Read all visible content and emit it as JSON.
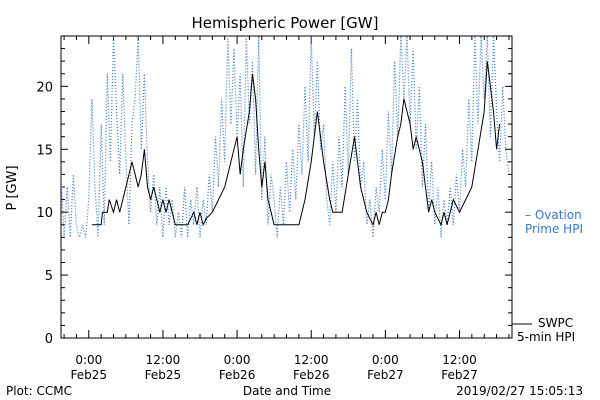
{
  "chart_data": {
    "type": "line",
    "title": "Hemispheric Power [GW]",
    "ylabel": "P [GW]",
    "xlabel": "Date and Time",
    "ylim": [
      0,
      24
    ],
    "xlim_hours": [
      -4.5,
      68.5
    ],
    "y_ticks": [
      {
        "value": 0,
        "label": "0"
      },
      {
        "value": 5,
        "label": "5"
      },
      {
        "value": 10,
        "label": "10"
      },
      {
        "value": 15,
        "label": "15"
      },
      {
        "value": 20,
        "label": "20"
      }
    ],
    "x_ticks": [
      {
        "hour": 0,
        "line1": "0:00",
        "line2": "Feb25"
      },
      {
        "hour": 12,
        "line1": "12:00",
        "line2": "Feb25"
      },
      {
        "hour": 24,
        "line1": "0:00",
        "line2": "Feb26"
      },
      {
        "hour": 36,
        "line1": "12:00",
        "line2": "Feb26"
      },
      {
        "hour": 48,
        "line1": "0:00",
        "line2": "Feb27"
      },
      {
        "hour": 60,
        "line1": "12:00",
        "line2": "Feb27"
      }
    ],
    "series": [
      {
        "name": "SWPC 5-min HPI",
        "color": "#000000",
        "style": "solid",
        "legend_line1": "SWPC",
        "legend_line2": "5-min HPI",
        "points": [
          [
            0.5,
            9
          ],
          [
            2,
            9
          ],
          [
            2.2,
            10
          ],
          [
            3,
            10
          ],
          [
            3.3,
            11
          ],
          [
            4,
            10
          ],
          [
            4.5,
            11
          ],
          [
            5,
            10
          ],
          [
            5.5,
            11
          ],
          [
            6,
            12
          ],
          [
            6.5,
            13
          ],
          [
            7,
            14
          ],
          [
            7.5,
            13
          ],
          [
            8,
            12
          ],
          [
            8.5,
            13
          ],
          [
            9,
            15
          ],
          [
            9.5,
            12
          ],
          [
            10,
            11
          ],
          [
            10.5,
            12
          ],
          [
            11,
            11
          ],
          [
            11.5,
            10
          ],
          [
            12,
            11
          ],
          [
            12.5,
            10
          ],
          [
            13,
            11
          ],
          [
            13.5,
            10
          ],
          [
            14,
            9
          ],
          [
            16,
            9
          ],
          [
            17,
            10
          ],
          [
            17.5,
            9
          ],
          [
            18,
            10
          ],
          [
            18.5,
            9
          ],
          [
            19,
            9.5
          ],
          [
            20,
            10
          ],
          [
            21,
            11
          ],
          [
            22,
            12
          ],
          [
            23,
            14
          ],
          [
            24,
            16
          ],
          [
            24.5,
            13
          ],
          [
            25,
            15
          ],
          [
            26,
            18
          ],
          [
            26.5,
            21
          ],
          [
            27,
            19
          ],
          [
            27.5,
            15
          ],
          [
            28,
            12
          ],
          [
            28.5,
            14
          ],
          [
            29,
            11
          ],
          [
            29.5,
            10
          ],
          [
            30,
            9
          ],
          [
            34,
            9
          ],
          [
            35,
            11
          ],
          [
            36,
            14
          ],
          [
            37,
            18
          ],
          [
            38,
            14
          ],
          [
            39,
            11
          ],
          [
            39.5,
            10
          ],
          [
            41,
            10
          ],
          [
            42,
            13
          ],
          [
            43,
            16
          ],
          [
            44,
            12
          ],
          [
            45,
            10
          ],
          [
            46,
            9
          ],
          [
            46.5,
            10
          ],
          [
            47,
            9
          ],
          [
            47.5,
            10
          ],
          [
            48,
            10
          ],
          [
            48.5,
            11
          ],
          [
            49,
            13
          ],
          [
            50,
            16
          ],
          [
            50.5,
            17
          ],
          [
            51,
            19
          ],
          [
            51.5,
            18
          ],
          [
            52,
            17
          ],
          [
            52.5,
            15
          ],
          [
            53,
            16
          ],
          [
            53.5,
            15
          ],
          [
            54,
            14
          ],
          [
            54.5,
            12
          ],
          [
            55,
            10
          ],
          [
            55.5,
            11
          ],
          [
            56,
            10
          ],
          [
            57,
            9
          ],
          [
            57.5,
            10
          ],
          [
            58,
            9
          ],
          [
            58.5,
            10
          ],
          [
            59,
            11
          ],
          [
            60,
            10
          ],
          [
            61,
            11
          ],
          [
            62,
            12
          ],
          [
            63,
            15
          ],
          [
            64,
            18
          ],
          [
            64.5,
            22
          ],
          [
            65,
            20
          ],
          [
            65.5,
            18
          ],
          [
            66,
            15
          ],
          [
            66.5,
            17
          ]
        ]
      },
      {
        "name": "Ovation Prime HPI",
        "color": "#3a78c8",
        "style": "dotted",
        "legend_line1": "– Ovation",
        "legend_line2": "Prime HPI",
        "points": [
          [
            -4.5,
            13
          ],
          [
            -4,
            8
          ],
          [
            -3.5,
            12
          ],
          [
            -3,
            8
          ],
          [
            -2.5,
            13
          ],
          [
            -2,
            9
          ],
          [
            -1.5,
            8
          ],
          [
            -1,
            9
          ],
          [
            -0.5,
            8
          ],
          [
            0,
            11
          ],
          [
            0.5,
            19
          ],
          [
            1,
            12
          ],
          [
            1.5,
            8
          ],
          [
            2,
            17
          ],
          [
            2.5,
            9
          ],
          [
            3,
            21
          ],
          [
            3.5,
            14
          ],
          [
            4,
            24
          ],
          [
            4.5,
            18
          ],
          [
            5,
            13
          ],
          [
            5.5,
            21
          ],
          [
            6,
            14
          ],
          [
            6.5,
            9
          ],
          [
            7,
            17
          ],
          [
            7.5,
            19
          ],
          [
            8,
            24
          ],
          [
            8.5,
            15
          ],
          [
            9,
            21
          ],
          [
            9.5,
            14
          ],
          [
            10,
            10
          ],
          [
            10.5,
            13
          ],
          [
            11,
            9
          ],
          [
            11.5,
            12
          ],
          [
            12,
            8
          ],
          [
            12.5,
            12
          ],
          [
            13,
            9
          ],
          [
            13.5,
            11
          ],
          [
            14,
            8
          ],
          [
            14.5,
            10
          ],
          [
            15,
            8
          ],
          [
            15.5,
            12
          ],
          [
            16,
            8
          ],
          [
            16.5,
            11
          ],
          [
            17,
            9
          ],
          [
            17.5,
            12
          ],
          [
            18,
            8
          ],
          [
            18.5,
            11
          ],
          [
            19,
            9
          ],
          [
            19.5,
            13
          ],
          [
            20,
            10
          ],
          [
            20.5,
            16
          ],
          [
            21,
            12
          ],
          [
            21.5,
            19
          ],
          [
            22,
            14
          ],
          [
            22.5,
            24
          ],
          [
            23,
            17
          ],
          [
            23.5,
            23
          ],
          [
            24,
            16
          ],
          [
            24.5,
            21
          ],
          [
            25,
            12
          ],
          [
            25.5,
            24
          ],
          [
            26,
            17
          ],
          [
            26.5,
            22
          ],
          [
            27,
            13
          ],
          [
            27.5,
            24
          ],
          [
            28,
            11
          ],
          [
            28.5,
            16
          ],
          [
            29,
            9
          ],
          [
            29.5,
            13
          ],
          [
            30,
            11
          ],
          [
            30.5,
            8
          ],
          [
            31,
            12
          ],
          [
            31.5,
            9
          ],
          [
            32,
            14
          ],
          [
            32.5,
            10
          ],
          [
            33,
            15
          ],
          [
            33.5,
            11
          ],
          [
            34,
            17
          ],
          [
            34.5,
            13
          ],
          [
            35,
            20
          ],
          [
            35.5,
            14
          ],
          [
            36,
            24
          ],
          [
            36.5,
            16
          ],
          [
            37,
            22
          ],
          [
            37.5,
            15
          ],
          [
            38,
            17
          ],
          [
            38.5,
            11
          ],
          [
            39,
            9
          ],
          [
            39.5,
            14
          ],
          [
            40,
            10
          ],
          [
            40.5,
            16
          ],
          [
            41,
            12
          ],
          [
            41.5,
            20
          ],
          [
            42,
            13
          ],
          [
            42.5,
            23
          ],
          [
            43,
            14
          ],
          [
            43.5,
            19
          ],
          [
            44,
            12
          ],
          [
            44.5,
            14
          ],
          [
            45,
            9
          ],
          [
            45.5,
            11
          ],
          [
            46,
            8
          ],
          [
            46.5,
            12
          ],
          [
            47,
            10
          ],
          [
            47.5,
            15
          ],
          [
            48,
            11
          ],
          [
            48.5,
            18
          ],
          [
            49,
            13
          ],
          [
            49.5,
            22
          ],
          [
            50,
            16
          ],
          [
            50.5,
            24
          ],
          [
            51,
            19
          ],
          [
            51.5,
            24
          ],
          [
            52,
            17
          ],
          [
            52.5,
            23
          ],
          [
            53,
            15
          ],
          [
            53.5,
            20
          ],
          [
            54,
            12
          ],
          [
            54.5,
            17
          ],
          [
            55,
            10
          ],
          [
            55.5,
            14
          ],
          [
            56,
            9
          ],
          [
            56.5,
            12
          ],
          [
            57,
            8
          ],
          [
            57.5,
            11
          ],
          [
            58,
            9
          ],
          [
            58.5,
            12
          ],
          [
            59,
            9
          ],
          [
            59.5,
            13
          ],
          [
            60,
            10
          ],
          [
            60.5,
            15
          ],
          [
            61,
            12
          ],
          [
            61.5,
            19
          ],
          [
            62,
            14
          ],
          [
            62.5,
            24
          ],
          [
            63,
            17
          ],
          [
            63.5,
            24
          ],
          [
            64,
            19
          ],
          [
            64.5,
            24
          ],
          [
            65,
            16
          ],
          [
            65.5,
            24
          ],
          [
            66,
            18
          ],
          [
            66.5,
            14
          ],
          [
            67,
            20
          ],
          [
            67.5,
            15
          ],
          [
            68,
            13
          ]
        ]
      }
    ]
  },
  "footer": {
    "left": "Plot: CCMC",
    "right": "2019/02/27 15:05:13"
  },
  "colors": {
    "axis": "#000000",
    "ovation": "#3a78c8"
  }
}
